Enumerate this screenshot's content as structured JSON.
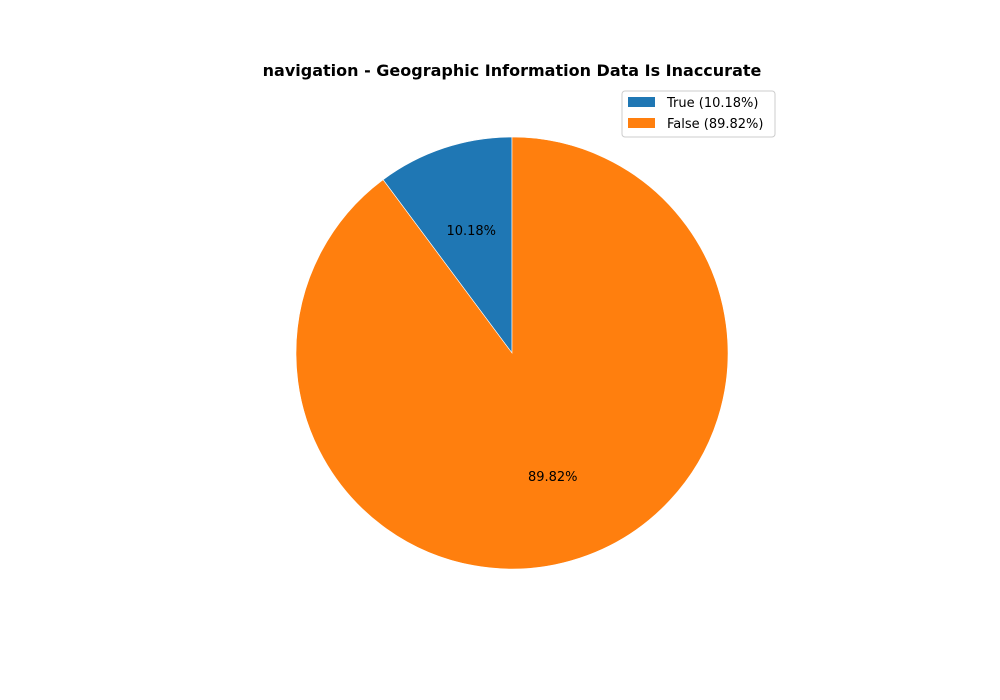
{
  "chart_data": {
    "type": "pie",
    "title": "navigation - Geographic Information Data Is Inaccurate",
    "legend_position": "top-right",
    "start_angle_deg": 90,
    "direction": "counterclockwise",
    "slices": [
      {
        "label": "True",
        "value": 10.18,
        "pct_label": "10.18%",
        "legend_label": "True (10.18%)",
        "color": "#1f77b4"
      },
      {
        "label": "False",
        "value": 89.82,
        "pct_label": "89.82%",
        "legend_label": "False (89.82%)",
        "color": "#ff7f0e"
      }
    ]
  }
}
